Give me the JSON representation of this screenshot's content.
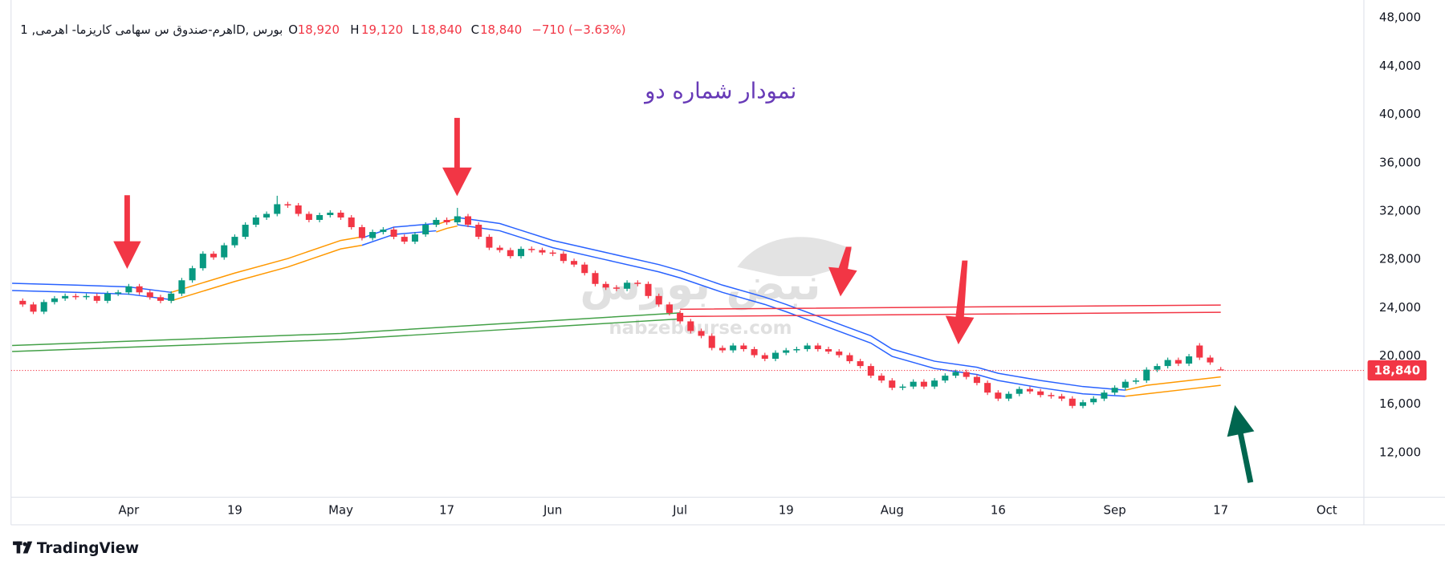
{
  "chart_data": {
    "type": "candlestick",
    "symbol": "اهرم-صندوق س سهامی کاریزما- اهرمی, 1D, بورس",
    "ohlc_prefixes": [
      "O",
      "H",
      "L",
      "C"
    ],
    "ohlc_values": [
      "18,920",
      "19,120",
      "18,840",
      "18,840"
    ],
    "change": "−710 (−3.63%)",
    "annotation": "نمودار شماره دو",
    "watermark": {
      "text": "نبض بورس",
      "url": "nabzebourse.com"
    },
    "colors": {
      "up": "#089981",
      "down": "#f23645"
    },
    "x": [
      -10,
      -9,
      -8,
      -7,
      -6,
      -5,
      -4,
      -3,
      -2,
      -1,
      0,
      1,
      2,
      3,
      4,
      5,
      6,
      7,
      8,
      9,
      10,
      11,
      12,
      13,
      14,
      15,
      16,
      17,
      18,
      19,
      20,
      21,
      22,
      23,
      24,
      25,
      26,
      27,
      28,
      29,
      30,
      31,
      32,
      33,
      34,
      35,
      36,
      37,
      38,
      39,
      40,
      41,
      42,
      43,
      44,
      45,
      46,
      47,
      48,
      49,
      50,
      51,
      52,
      53,
      54,
      55,
      56,
      57,
      58,
      59,
      60,
      61,
      62,
      63,
      64,
      65,
      66,
      67,
      68,
      69,
      70,
      71,
      72,
      73,
      74,
      75,
      76,
      77,
      78,
      79,
      80,
      81,
      82,
      83,
      84,
      85,
      86,
      87,
      88,
      89,
      90,
      91,
      92,
      93,
      94,
      95,
      96,
      97,
      98,
      99,
      100,
      101,
      102,
      103
    ],
    "open": [
      24600,
      24300,
      23700,
      24500,
      24800,
      25000,
      24900,
      25000,
      24600,
      25200,
      25300,
      25800,
      25300,
      24900,
      24600,
      25200,
      26300,
      27300,
      28500,
      28200,
      29200,
      29900,
      30900,
      31500,
      31800,
      32600,
      32500,
      31800,
      31300,
      31700,
      31900,
      31500,
      30700,
      29800,
      30300,
      30500,
      29900,
      29500,
      30100,
      30900,
      31300,
      31100,
      31600,
      30900,
      29900,
      29000,
      28800,
      28300,
      28900,
      28800,
      28600,
      28500,
      27900,
      27600,
      26900,
      26000,
      25700,
      25600,
      26100,
      26000,
      25000,
      24300,
      23600,
      22900,
      22100,
      21700,
      20700,
      20500,
      20900,
      20600,
      20100,
      19800,
      20300,
      20500,
      20600,
      20900,
      20600,
      20400,
      20100,
      19600,
      19200,
      18400,
      18000,
      17400,
      17500,
      17900,
      17500,
      18000,
      18400,
      18700,
      18300,
      17800,
      17000,
      16500,
      16900,
      17300,
      17100,
      16800,
      16700,
      16500,
      15900,
      16200,
      16500,
      17000,
      17400,
      17900,
      18000,
      18900,
      19200,
      19700,
      19400,
      20900,
      19900,
      18920
    ],
    "high": [
      24800,
      24500,
      24700,
      25000,
      25200,
      25200,
      25200,
      25200,
      25400,
      25500,
      26000,
      26000,
      25500,
      25100,
      25400,
      26500,
      27500,
      28700,
      28700,
      29400,
      30100,
      31100,
      31700,
      32000,
      33300,
      32800,
      32700,
      32000,
      31900,
      32100,
      32100,
      31700,
      30900,
      30500,
      30700,
      30700,
      30100,
      30300,
      31100,
      31500,
      31500,
      32300,
      31800,
      31100,
      30100,
      29200,
      29000,
      29100,
      29100,
      29000,
      28800,
      28700,
      28100,
      27800,
      27100,
      26200,
      25900,
      26300,
      26300,
      26200,
      25200,
      24500,
      23800,
      23100,
      22300,
      21900,
      20900,
      21100,
      21100,
      20800,
      20300,
      20500,
      20700,
      20800,
      21100,
      21100,
      20800,
      20600,
      20300,
      19800,
      19400,
      18600,
      18200,
      17700,
      18100,
      18100,
      18200,
      18600,
      18900,
      18900,
      18500,
      18000,
      17200,
      17100,
      17500,
      17500,
      17300,
      17000,
      16900,
      16700,
      16400,
      16700,
      17200,
      17600,
      18100,
      18200,
      19100,
      19400,
      19900,
      19900,
      20200,
      21100,
      20100,
      19120
    ],
    "low": [
      24100,
      23500,
      23500,
      24300,
      24600,
      24700,
      24700,
      24400,
      24400,
      25000,
      25100,
      25100,
      24700,
      24400,
      24400,
      25000,
      26100,
      27100,
      28000,
      28000,
      29000,
      29700,
      30700,
      31300,
      31600,
      32300,
      31600,
      31100,
      31100,
      31500,
      31300,
      30500,
      29600,
      29600,
      30100,
      29700,
      29300,
      29300,
      29900,
      30700,
      30900,
      30900,
      30700,
      29700,
      28800,
      28600,
      28100,
      28100,
      28600,
      28400,
      28300,
      27700,
      27400,
      26700,
      25800,
      25500,
      25400,
      25400,
      25800,
      24800,
      24100,
      23400,
      22700,
      21900,
      21500,
      20500,
      20300,
      20300,
      20400,
      19900,
      19600,
      19600,
      20100,
      20300,
      20400,
      20400,
      20200,
      19900,
      19400,
      19000,
      18200,
      17800,
      17200,
      17200,
      17300,
      17300,
      17300,
      17800,
      18200,
      18100,
      17600,
      16800,
      16300,
      16300,
      16700,
      16900,
      16600,
      16500,
      16300,
      15700,
      15700,
      16000,
      16300,
      16800,
      17200,
      17700,
      17800,
      18700,
      19000,
      19200,
      19200,
      19700,
      19300,
      18840
    ],
    "close": [
      24300,
      23700,
      24500,
      24800,
      25000,
      24900,
      25000,
      24600,
      25200,
      25300,
      25800,
      25300,
      24900,
      24600,
      25200,
      26300,
      27300,
      28500,
      28200,
      29200,
      29900,
      30900,
      31500,
      31800,
      32600,
      32500,
      31800,
      31300,
      31700,
      31900,
      31500,
      30700,
      29800,
      30300,
      30500,
      29900,
      29500,
      30100,
      30900,
      31300,
      31100,
      31600,
      30900,
      29900,
      29000,
      28800,
      28300,
      28900,
      28800,
      28600,
      28500,
      27900,
      27600,
      26900,
      26000,
      25700,
      25600,
      26100,
      26000,
      25000,
      24300,
      23600,
      22900,
      22100,
      21700,
      20700,
      20500,
      20900,
      20600,
      20100,
      19800,
      20300,
      20500,
      20600,
      20900,
      20600,
      20400,
      20100,
      19600,
      19200,
      18400,
      18000,
      17400,
      17500,
      17900,
      17500,
      18000,
      18400,
      18700,
      18300,
      17800,
      17000,
      16500,
      16900,
      17300,
      17100,
      16800,
      16700,
      16500,
      15900,
      16200,
      16500,
      17000,
      17400,
      17900,
      18000,
      18900,
      19200,
      19700,
      19400,
      20000,
      19900,
      19500,
      18840
    ],
    "overlays": [
      {
        "color": "#2962ff",
        "x": [
          -11,
          -5,
          0,
          4,
          13,
          22,
          25,
          29,
          30,
          31,
          35,
          40,
          45,
          50,
          52,
          56,
          60,
          62,
          66,
          70,
          72,
          76,
          80,
          82,
          86,
          90,
          94
        ],
        "values": [
          26050,
          25900,
          25750,
          25300,
          null,
          29800,
          30700,
          31000,
          null,
          31500,
          31000,
          29600,
          28600,
          27600,
          27100,
          25900,
          24900,
          24300,
          23000,
          21700,
          20600,
          19600,
          19100,
          18600,
          18000,
          17500,
          17200
        ]
      },
      {
        "color": "#2962ff",
        "x": [
          -11,
          -5,
          0,
          4,
          13,
          22,
          25,
          29,
          30,
          31,
          35,
          40,
          45,
          50,
          52,
          56,
          60,
          62,
          66,
          70,
          72,
          76,
          80,
          82,
          86,
          90,
          94
        ],
        "values": [
          25450,
          25300,
          25150,
          24700,
          null,
          29200,
          30100,
          30400,
          null,
          30900,
          30400,
          29000,
          28000,
          27000,
          26500,
          25300,
          24300,
          23700,
          22400,
          21100,
          20000,
          19000,
          18500,
          18000,
          17400,
          16900,
          16700
        ]
      },
      {
        "color": "#ff9800",
        "x": [
          4,
          10,
          15,
          20,
          22,
          23,
          29,
          30,
          31,
          32,
          94,
          96,
          100,
          103
        ],
        "values": [
          25300,
          26900,
          28100,
          29600,
          29900,
          null,
          30900,
          31200,
          31400,
          null,
          17200,
          17600,
          18000,
          18300
        ]
      },
      {
        "color": "#ff9800",
        "x": [
          4,
          10,
          15,
          20,
          22,
          23,
          29,
          30,
          31,
          32,
          94,
          96,
          100,
          103
        ],
        "values": [
          24600,
          26200,
          27400,
          28900,
          29200,
          null,
          30300,
          30600,
          30800,
          null,
          16700,
          16900,
          17300,
          17600
        ]
      },
      {
        "color": "#43a047",
        "x": [
          -11,
          20,
          52
        ],
        "values": [
          20900,
          21900,
          23600
        ]
      },
      {
        "color": "#43a047",
        "x": [
          -11,
          20,
          52
        ],
        "values": [
          20400,
          21400,
          23100
        ]
      },
      {
        "color": "#f23645",
        "x": [
          52,
          80,
          103
        ],
        "values": [
          23900,
          24100,
          24250
        ]
      },
      {
        "color": "#f23645",
        "x": [
          52,
          80,
          103
        ],
        "values": [
          23300,
          23500,
          23650
        ]
      }
    ],
    "last_price": {
      "value": 18840,
      "label": "18,840"
    },
    "xlim": [
      -11.1,
      116.5
    ],
    "ylim": [
      8340,
      48900
    ],
    "xticks": [
      {
        "value": 0,
        "label": "Apr"
      },
      {
        "value": 10,
        "label": "19"
      },
      {
        "value": 20,
        "label": "May"
      },
      {
        "value": 30,
        "label": "17"
      },
      {
        "value": 40,
        "label": "Jun"
      },
      {
        "value": 52,
        "label": "Jul"
      },
      {
        "value": 62,
        "label": "19"
      },
      {
        "value": 72,
        "label": "Aug"
      },
      {
        "value": 82,
        "label": "16"
      },
      {
        "value": 93,
        "label": "Sep"
      },
      {
        "value": 103,
        "label": "17"
      },
      {
        "value": 113,
        "label": "Oct"
      }
    ],
    "yticks": [
      {
        "value": 12000,
        "label": "12,000"
      },
      {
        "value": 16000,
        "label": "16,000"
      },
      {
        "value": 20000,
        "label": "20,000"
      },
      {
        "value": 24000,
        "label": "24,000"
      },
      {
        "value": 28000,
        "label": "28,000"
      },
      {
        "value": 32000,
        "label": "32,000"
      },
      {
        "value": 36000,
        "label": "36,000"
      },
      {
        "value": 40000,
        "label": "40,000"
      },
      {
        "value": 44000,
        "label": "44,000"
      },
      {
        "value": 48000,
        "label": "48,000"
      }
    ],
    "grid": false
  },
  "footer": {
    "brand": "TradingView"
  }
}
